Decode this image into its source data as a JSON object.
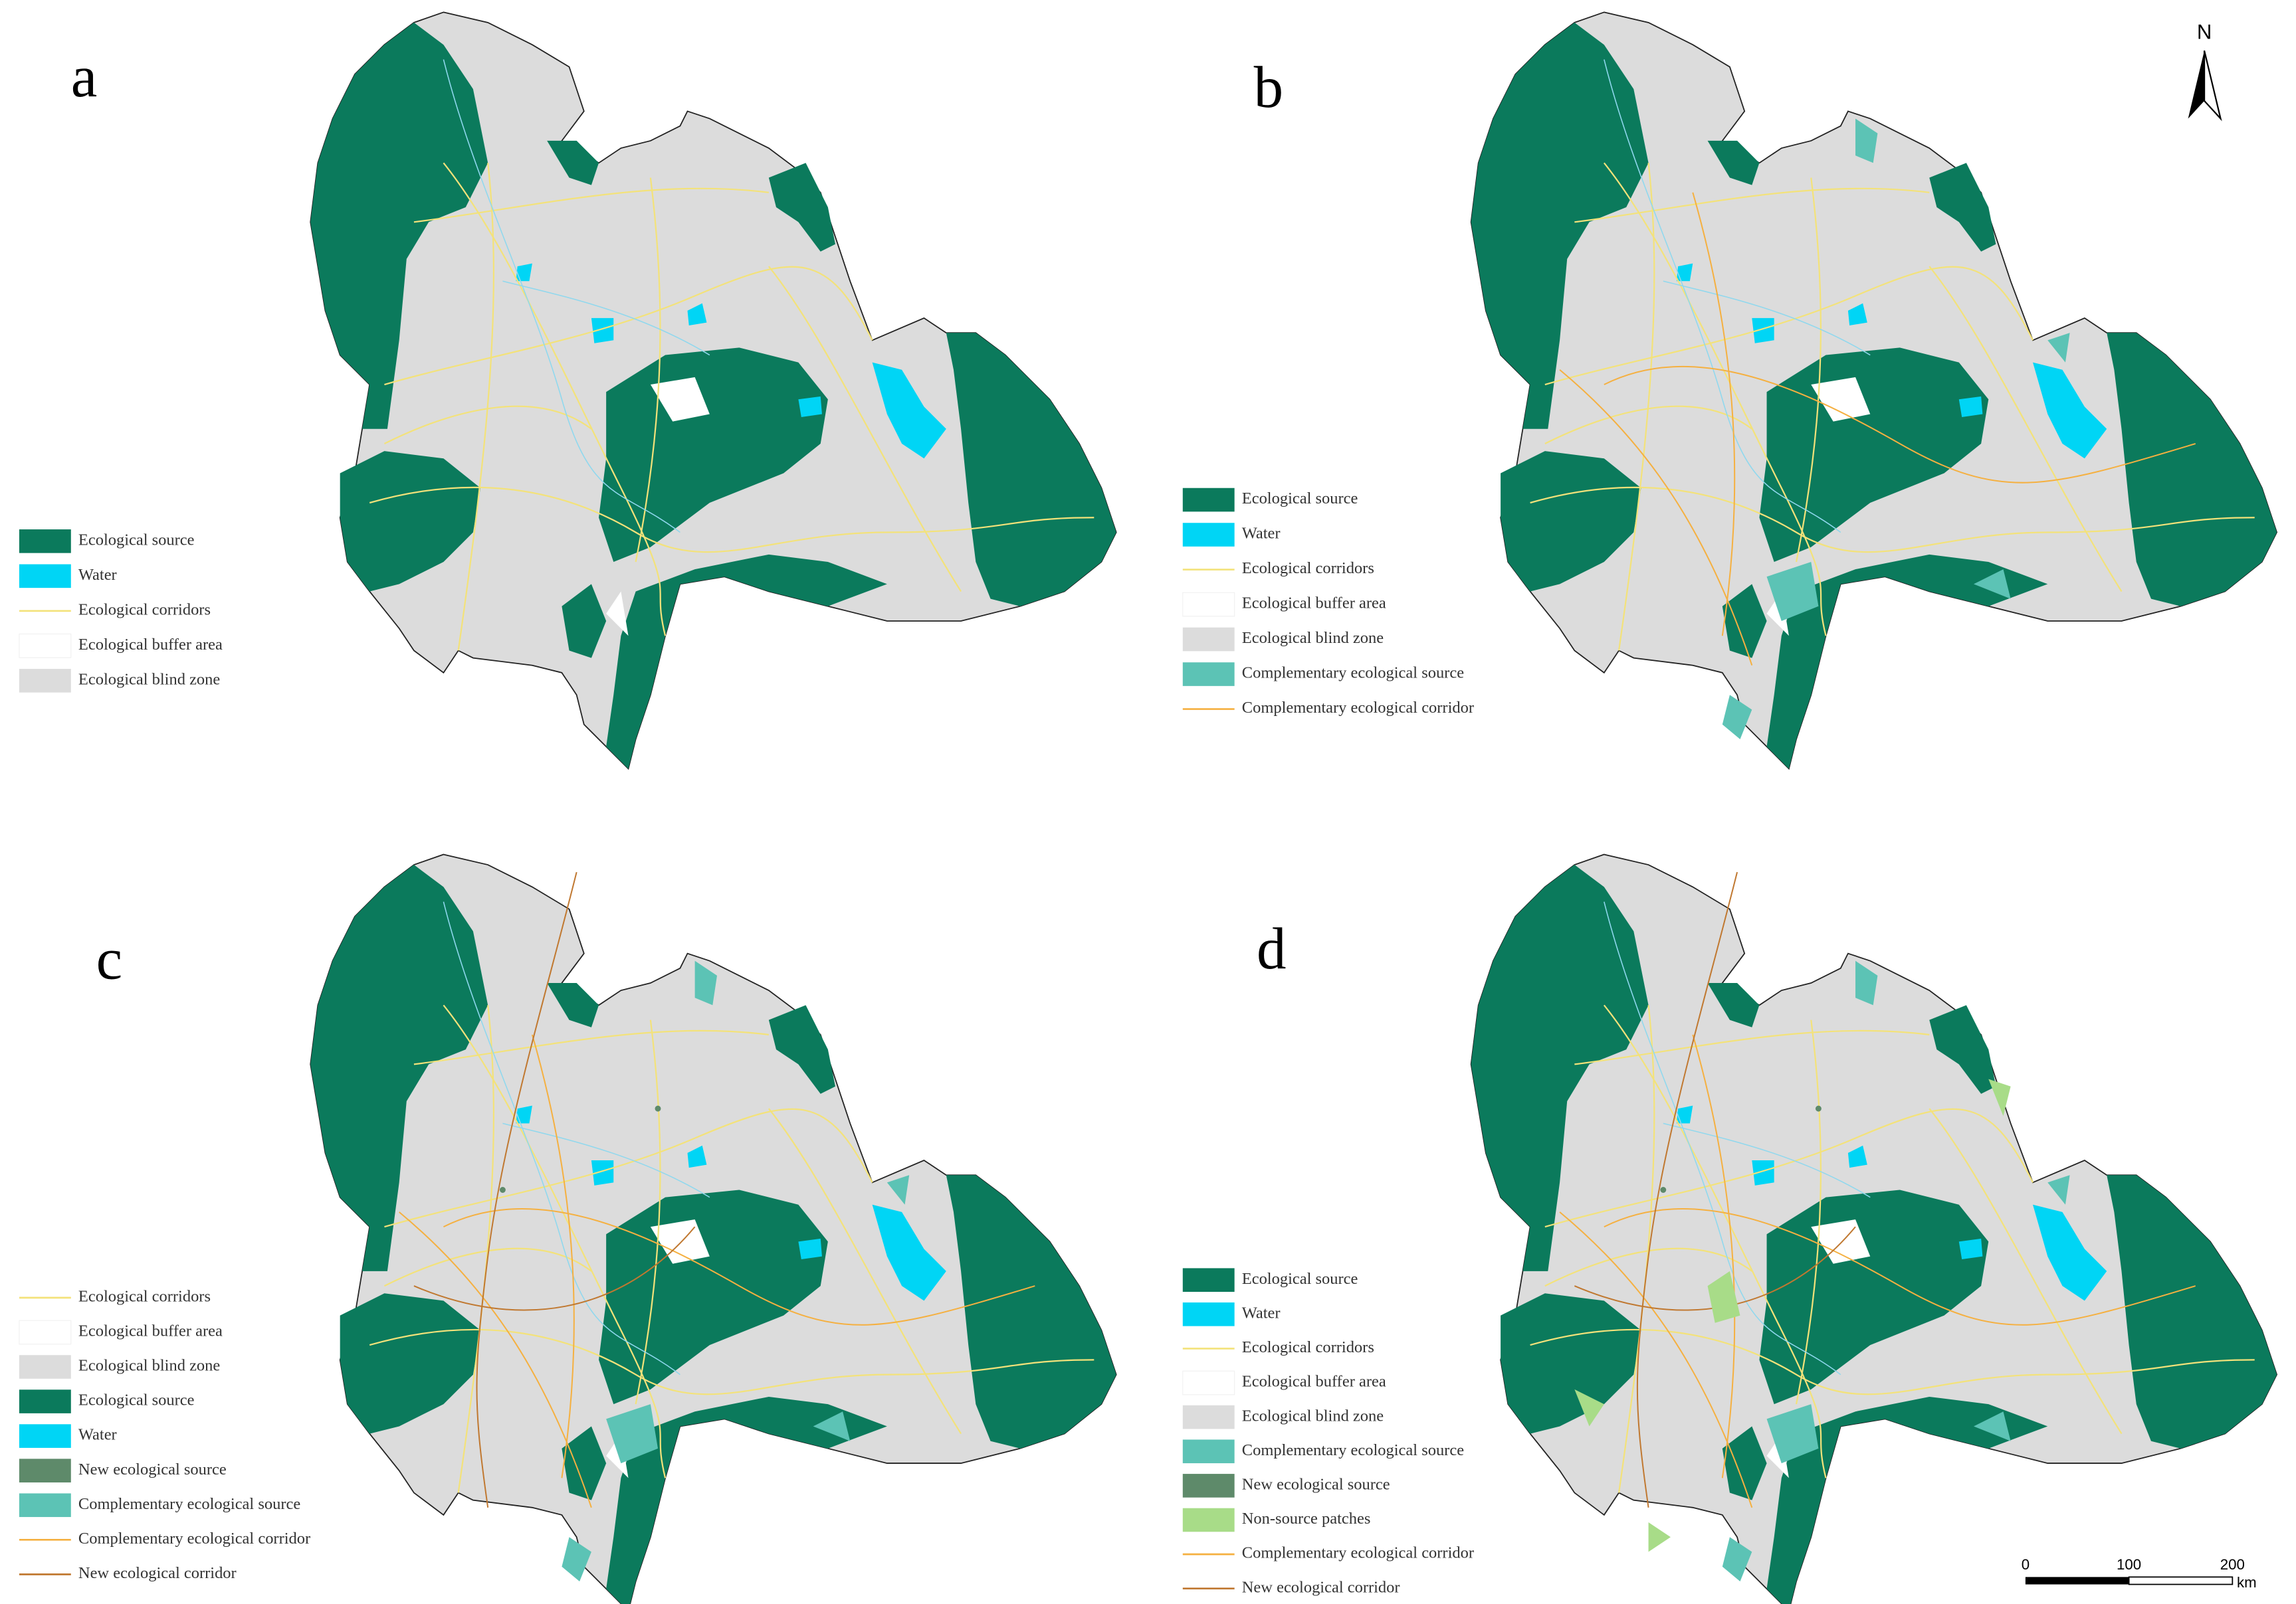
{
  "panels": [
    {
      "label": "a",
      "legend": [
        {
          "label": "Ecological source",
          "color": "#0b7a5c",
          "symbol": "fill"
        },
        {
          "label": "Water",
          "color": "#00d5f5",
          "symbol": "fill"
        },
        {
          "label": "Ecological corridors",
          "color": "#f3e27a",
          "symbol": "line"
        },
        {
          "label": "Ecological buffer area",
          "color": "#ffffff",
          "symbol": "fill"
        },
        {
          "label": "Ecological blind zone",
          "color": "#dcdcdc",
          "symbol": "fill"
        }
      ]
    },
    {
      "label": "b",
      "legend": [
        {
          "label": "Ecological source",
          "color": "#0b7a5c",
          "symbol": "fill"
        },
        {
          "label": "Water",
          "color": "#00d5f5",
          "symbol": "fill"
        },
        {
          "label": "Ecological corridors",
          "color": "#f3e27a",
          "symbol": "line"
        },
        {
          "label": "Ecological buffer area",
          "color": "#ffffff",
          "symbol": "fill"
        },
        {
          "label": "Ecological blind zone",
          "color": "#dcdcdc",
          "symbol": "fill"
        },
        {
          "label": "Complementary ecological source",
          "color": "#5cc3b5",
          "symbol": "fill"
        },
        {
          "label": "Complementary ecological corridor",
          "color": "#f5b040",
          "symbol": "line"
        }
      ]
    },
    {
      "label": "c",
      "legend": [
        {
          "label": "Ecological corridors",
          "color": "#f3e27a",
          "symbol": "line"
        },
        {
          "label": "Ecological buffer area",
          "color": "#ffffff",
          "symbol": "fill"
        },
        {
          "label": "Ecological blind zone",
          "color": "#dcdcdc",
          "symbol": "fill"
        },
        {
          "label": "Ecological source",
          "color": "#0b7a5c",
          "symbol": "fill"
        },
        {
          "label": "Water",
          "color": "#00d5f5",
          "symbol": "fill"
        },
        {
          "label": "New ecological source",
          "color": "#5e8a6a",
          "symbol": "fill"
        },
        {
          "label": "Complementary ecological source",
          "color": "#5cc3b5",
          "symbol": "fill"
        },
        {
          "label": "Complementary ecological corridor",
          "color": "#f5b040",
          "symbol": "line"
        },
        {
          "label": "New ecological corridor",
          "color": "#c07830",
          "symbol": "line"
        }
      ]
    },
    {
      "label": "d",
      "legend": [
        {
          "label": "Ecological source",
          "color": "#0b7a5c",
          "symbol": "fill"
        },
        {
          "label": "Water",
          "color": "#00d5f5",
          "symbol": "fill"
        },
        {
          "label": "Ecological corridors",
          "color": "#f3e27a",
          "symbol": "line"
        },
        {
          "label": "Ecological buffer area",
          "color": "#ffffff",
          "symbol": "fill"
        },
        {
          "label": "Ecological blind zone",
          "color": "#dcdcdc",
          "symbol": "fill"
        },
        {
          "label": "Complementary ecological source",
          "color": "#5cc3b5",
          "symbol": "fill"
        },
        {
          "label": "New ecological source",
          "color": "#5e8a6a",
          "symbol": "fill"
        },
        {
          "label": "Non-source patches",
          "color": "#a8dc88",
          "symbol": "fill"
        },
        {
          "label": "Complementary ecological corridor",
          "color": "#f5b040",
          "symbol": "line"
        },
        {
          "label": "New ecological corridor",
          "color": "#c07830",
          "symbol": "line"
        }
      ]
    }
  ],
  "north_arrow": "N",
  "scale_bar": {
    "ticks": [
      0,
      100,
      200
    ],
    "unit": "km"
  }
}
